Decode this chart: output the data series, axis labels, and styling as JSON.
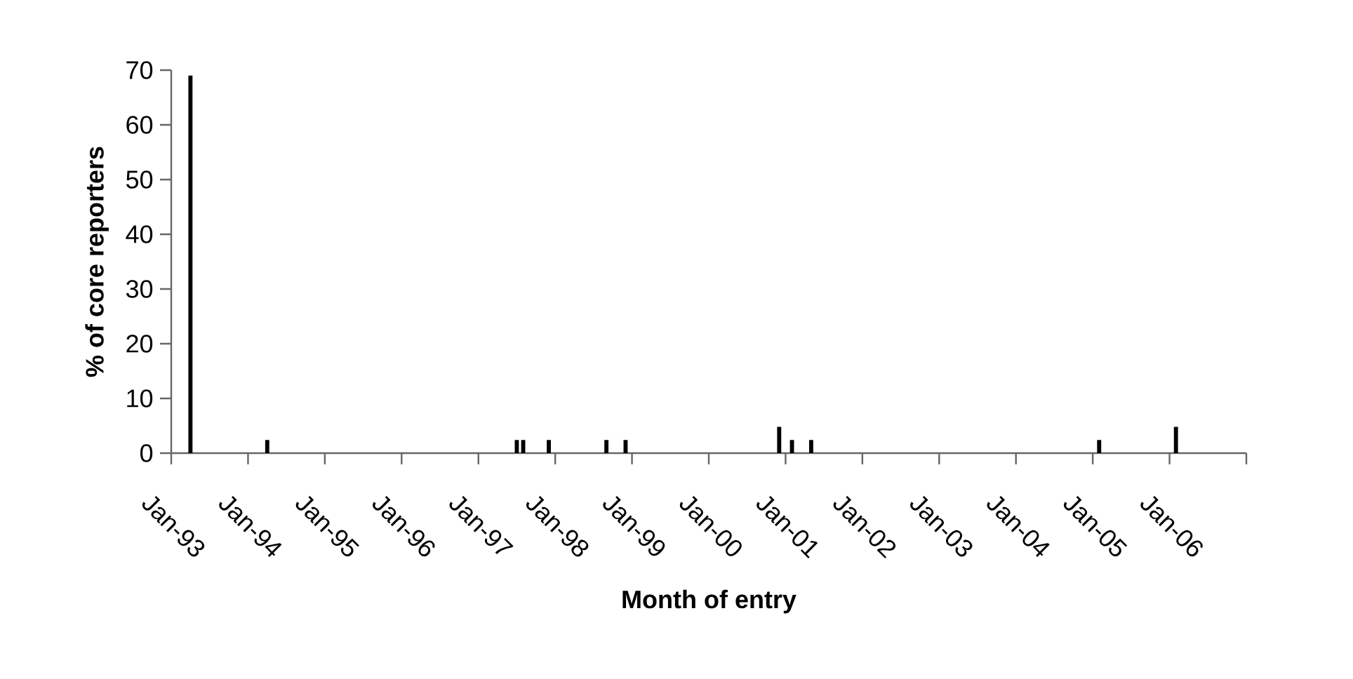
{
  "chart_data": {
    "type": "bar",
    "xlabel": "Month of entry",
    "ylabel": "% of core reporters",
    "x": [
      "1993-04",
      "1994-04",
      "1997-07",
      "1997-08",
      "1997-12",
      "1998-09",
      "1998-12",
      "2000-12",
      "2001-02",
      "2001-05",
      "2005-02",
      "2006-02"
    ],
    "values": [
      69,
      2.4,
      2.4,
      2.4,
      2.4,
      2.4,
      2.4,
      4.8,
      2.4,
      2.4,
      2.4,
      4.8
    ],
    "color": "#000000",
    "xlim": [
      "1993-01",
      "2007-01"
    ],
    "xticks": [
      {
        "value": "1993-01",
        "label": "Jan-93"
      },
      {
        "value": "1994-01",
        "label": "Jan-94"
      },
      {
        "value": "1995-01",
        "label": "Jan-95"
      },
      {
        "value": "1996-01",
        "label": "Jan-96"
      },
      {
        "value": "1997-01",
        "label": "Jan-97"
      },
      {
        "value": "1998-01",
        "label": "Jan-98"
      },
      {
        "value": "1999-01",
        "label": "Jan-99"
      },
      {
        "value": "2000-01",
        "label": "Jan-00"
      },
      {
        "value": "2001-01",
        "label": "Jan-01"
      },
      {
        "value": "2002-01",
        "label": "Jan-02"
      },
      {
        "value": "2003-01",
        "label": "Jan-03"
      },
      {
        "value": "2004-01",
        "label": "Jan-04"
      },
      {
        "value": "2005-01",
        "label": "Jan-05"
      },
      {
        "value": "2006-01",
        "label": "Jan-06"
      },
      {
        "value": "2007-01",
        "label": null
      }
    ],
    "ylim": [
      0,
      70
    ],
    "yticks": [
      0,
      10,
      20,
      30,
      40,
      50,
      60,
      70
    ]
  }
}
